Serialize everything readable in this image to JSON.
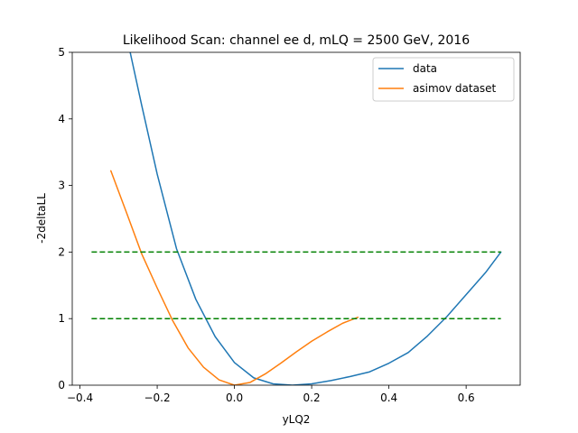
{
  "chart_data": {
    "type": "line",
    "title": "Likelihood Scan: channel ee d, mLQ = 2500 GeV, 2016",
    "xlabel": "yLQ2",
    "ylabel": "-2deltaLL",
    "xlim": [
      -0.42,
      0.74
    ],
    "ylim": [
      0,
      5
    ],
    "xticks": [
      -0.4,
      -0.2,
      0.0,
      0.2,
      0.4,
      0.6
    ],
    "xtick_labels": [
      "−0.4",
      "−0.2",
      "0.0",
      "0.2",
      "0.4",
      "0.6"
    ],
    "yticks": [
      0,
      1,
      2,
      3,
      4,
      5
    ],
    "ytick_labels": [
      "0",
      "1",
      "2",
      "3",
      "4",
      "5"
    ],
    "grid": false,
    "legend_position": "top-right",
    "series": [
      {
        "name": "data",
        "color": "#1f77b4",
        "points": [
          [
            -0.27,
            5.0
          ],
          [
            -0.24,
            4.2
          ],
          [
            -0.2,
            3.17
          ],
          [
            -0.15,
            2.05
          ],
          [
            -0.1,
            1.29
          ],
          [
            -0.05,
            0.73
          ],
          [
            0.0,
            0.34
          ],
          [
            0.05,
            0.11
          ],
          [
            0.1,
            0.02
          ],
          [
            0.15,
            0.0
          ],
          [
            0.2,
            0.02
          ],
          [
            0.25,
            0.07
          ],
          [
            0.3,
            0.13
          ],
          [
            0.35,
            0.2
          ],
          [
            0.4,
            0.33
          ],
          [
            0.45,
            0.49
          ],
          [
            0.5,
            0.74
          ],
          [
            0.55,
            1.03
          ],
          [
            0.6,
            1.36
          ],
          [
            0.65,
            1.69
          ],
          [
            0.69,
            2.0
          ]
        ]
      },
      {
        "name": "asimov dataset",
        "color": "#ff7f0e",
        "points": [
          [
            -0.32,
            3.22
          ],
          [
            -0.28,
            2.6
          ],
          [
            -0.24,
            1.97
          ],
          [
            -0.2,
            1.46
          ],
          [
            -0.16,
            0.97
          ],
          [
            -0.12,
            0.56
          ],
          [
            -0.08,
            0.27
          ],
          [
            -0.04,
            0.08
          ],
          [
            0.0,
            0.0
          ],
          [
            0.04,
            0.04
          ],
          [
            0.08,
            0.17
          ],
          [
            0.12,
            0.33
          ],
          [
            0.16,
            0.5
          ],
          [
            0.2,
            0.66
          ],
          [
            0.24,
            0.8
          ],
          [
            0.28,
            0.93
          ],
          [
            0.32,
            1.02
          ]
        ]
      }
    ],
    "reference_lines": [
      {
        "y": 1,
        "x_range": [
          -0.37,
          0.69
        ],
        "color": "#008000",
        "style": "dashed"
      },
      {
        "y": 2,
        "x_range": [
          -0.37,
          0.69
        ],
        "color": "#008000",
        "style": "dashed"
      }
    ]
  }
}
